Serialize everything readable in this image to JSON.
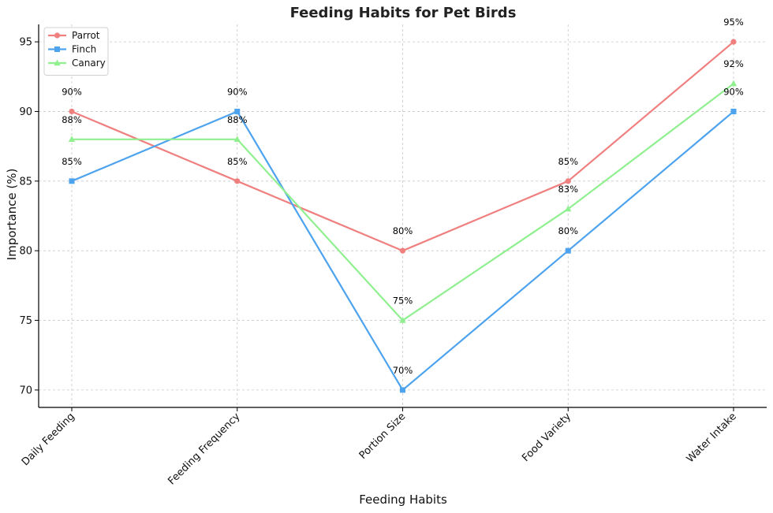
{
  "chart_data": {
    "type": "line",
    "title": "Feeding Habits for Pet Birds",
    "xlabel": "Feeding Habits",
    "ylabel": "Importance (%)",
    "categories": [
      "Daily Feeding",
      "Feeding Frequency",
      "Portion Size",
      "Food Variety",
      "Water Intake"
    ],
    "ylim": [
      68.75,
      96.25
    ],
    "yticks": [
      70,
      75,
      80,
      85,
      90,
      95
    ],
    "grid": true,
    "legend_position": "top-left",
    "label_suffix": "%",
    "series": [
      {
        "name": "Parrot",
        "values": [
          90,
          85,
          80,
          85,
          95
        ],
        "color": "#f08080",
        "marker": "circle"
      },
      {
        "name": "Finch",
        "values": [
          85,
          90,
          70,
          80,
          90
        ],
        "color": "#4da3ee",
        "marker": "square"
      },
      {
        "name": "Canary",
        "values": [
          88,
          88,
          75,
          83,
          92
        ],
        "color": "#90f090",
        "marker": "triangle"
      }
    ]
  }
}
